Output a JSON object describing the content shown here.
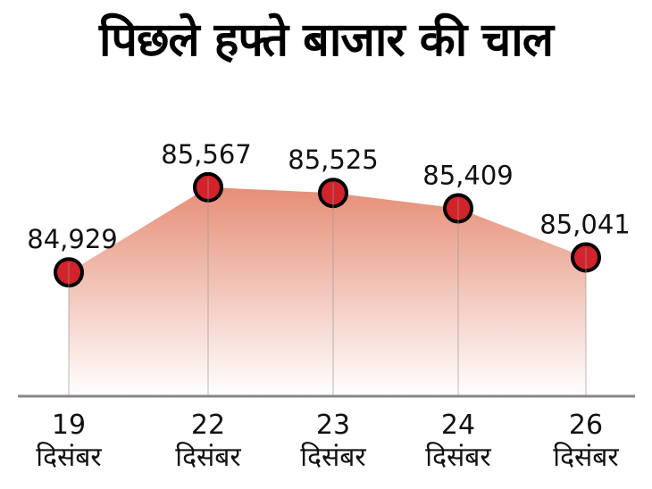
{
  "title": "पिछले हफ्ते बाजार की चाल",
  "chart_data": {
    "type": "area",
    "title": "पिछले हफ्ते बाजार की चाल",
    "xlabel": "",
    "ylabel": "",
    "categories": [
      {
        "day": "19",
        "month": "दिसंबर"
      },
      {
        "day": "22",
        "month": "दिसंबर"
      },
      {
        "day": "23",
        "month": "दिसंबर"
      },
      {
        "day": "24",
        "month": "दिसंबर"
      },
      {
        "day": "26",
        "month": "दिसंबर"
      }
    ],
    "values": [
      84929,
      85567,
      85525,
      85409,
      85041
    ],
    "value_labels": [
      "84,929",
      "85,567",
      "85,525",
      "85,409",
      "85,041"
    ],
    "ylim": [
      84000,
      85600
    ],
    "grid": "vertical-lines-at-points",
    "legend": "none",
    "colors": {
      "dot_fill": "#d2232a",
      "dot_stroke": "#000000",
      "area_top": "#e68e76",
      "area_bottom": "#ffffff",
      "axis_line": "#878787",
      "gridline": "#9a9a9a",
      "label_text": "#111111"
    }
  }
}
